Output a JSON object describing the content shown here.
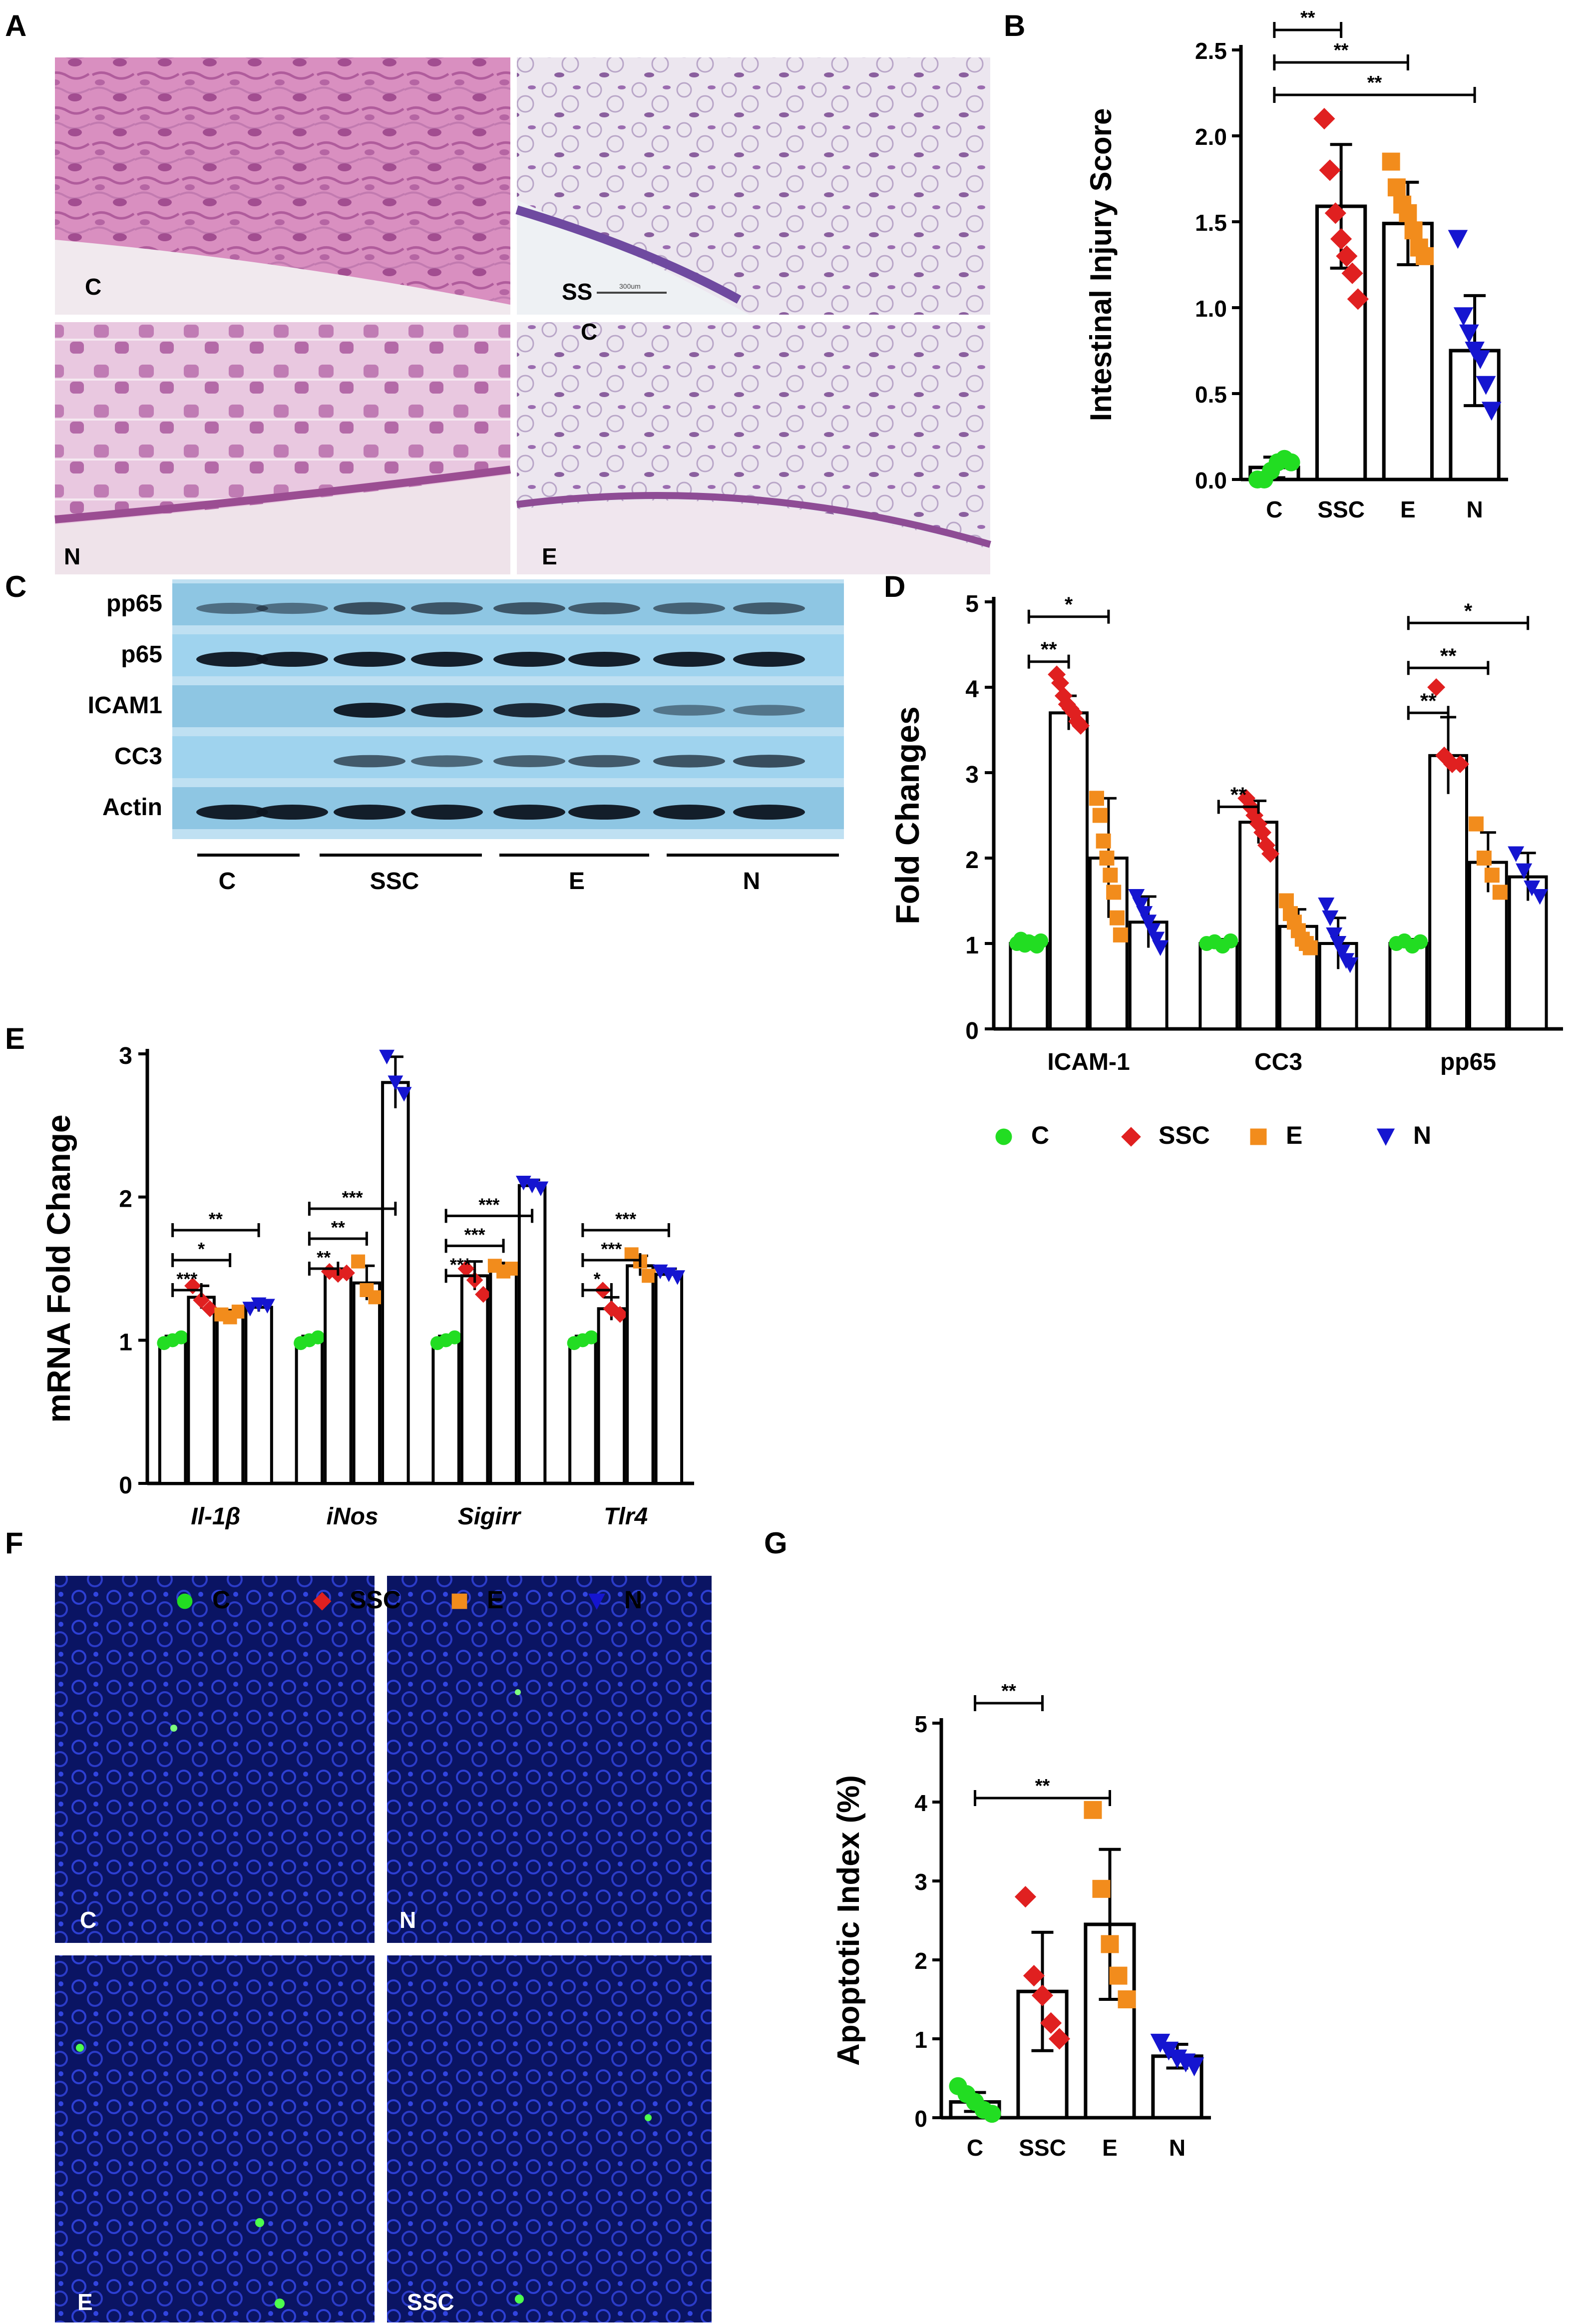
{
  "panel_labels": {
    "A": "A",
    "B": "B",
    "C": "C",
    "D": "D",
    "E": "E",
    "F": "F",
    "G": "G"
  },
  "colors": {
    "C": "#22dd22",
    "SSC": "#e02020",
    "E": "#f28c1c",
    "N": "#1515d0"
  },
  "histology": {
    "labels": [
      "C",
      "SS",
      "C",
      "N",
      "E"
    ],
    "scale_bar": "300um"
  },
  "western": {
    "rows": [
      "pp65",
      "p65",
      "ICAM1",
      "CC3",
      "Actin"
    ],
    "groups": [
      "C",
      "SSC",
      "E",
      "N"
    ]
  },
  "fluorescence": {
    "labels": [
      "C",
      "N",
      "E",
      "SSC"
    ]
  },
  "chart_data": [
    {
      "panel": "B",
      "type": "bar",
      "ylabel": "Intestinal Injury Score",
      "categories": [
        "C",
        "SSC",
        "E",
        "N"
      ],
      "ylim": [
        0,
        2.5
      ],
      "yticks": [
        "0.0",
        "0.5",
        "1.0",
        "1.5",
        "2.0",
        "2.5"
      ],
      "means": [
        0.07,
        1.59,
        1.49,
        0.75
      ],
      "sd": [
        0.06,
        0.36,
        0.24,
        0.32
      ],
      "points": [
        [
          0,
          0,
          0.05,
          0.1,
          0.12,
          0.1
        ],
        [
          2.1,
          1.8,
          1.55,
          1.4,
          1.3,
          1.2,
          1.05
        ],
        [
          1.85,
          1.7,
          1.6,
          1.55,
          1.45,
          1.35,
          1.3
        ],
        [
          1.4,
          0.95,
          0.85,
          0.75,
          0.7,
          0.55,
          0.4
        ]
      ],
      "significance": [
        {
          "from": 0,
          "to": 1,
          "label": "**"
        },
        {
          "from": 0,
          "to": 2,
          "label": "**"
        },
        {
          "from": 0,
          "to": 3,
          "label": "**"
        }
      ]
    },
    {
      "panel": "D",
      "type": "bar",
      "ylabel": "Fold Changes",
      "categories": [
        "ICAM-1",
        "CC3",
        "pp65"
      ],
      "series_names": [
        "C",
        "SSC",
        "E",
        "N"
      ],
      "ylim": [
        0,
        5
      ],
      "yticks": [
        "0",
        "1",
        "2",
        "3",
        "4",
        "5"
      ],
      "means": [
        [
          1.0,
          3.7,
          2.0,
          1.25
        ],
        [
          1.0,
          2.42,
          1.2,
          1.0
        ],
        [
          1.0,
          3.2,
          1.95,
          1.78
        ]
      ],
      "sd": [
        [
          0.05,
          0.2,
          0.7,
          0.3
        ],
        [
          0.05,
          0.25,
          0.2,
          0.3
        ],
        [
          0.05,
          0.45,
          0.35,
          0.28
        ]
      ],
      "points": [
        [
          [
            1.0,
            1.05,
            0.98,
            1.02,
            1.0,
            0.97,
            1.03
          ],
          [
            4.15,
            4.05,
            3.9,
            3.8,
            3.75,
            3.7,
            3.6,
            3.55
          ],
          [
            2.7,
            2.5,
            2.2,
            2.0,
            1.8,
            1.6,
            1.3,
            1.1
          ],
          [
            1.55,
            1.45,
            1.35,
            1.25,
            1.15,
            1.05,
            0.95
          ]
        ],
        [
          [
            1.0,
            1.02,
            0.97,
            1.03
          ],
          [
            2.7,
            2.6,
            2.5,
            2.4,
            2.3,
            2.15,
            2.05
          ],
          [
            1.5,
            1.35,
            1.25,
            1.15,
            1.05,
            1.0,
            0.95
          ],
          [
            1.45,
            1.3,
            1.1,
            1.0,
            0.9,
            0.8,
            0.75
          ]
        ],
        [
          [
            1.0,
            1.03,
            0.97,
            1.02
          ],
          [
            4.0,
            3.2,
            3.1,
            3.1
          ],
          [
            2.4,
            2.0,
            1.8,
            1.6
          ],
          [
            2.05,
            1.85,
            1.65,
            1.55
          ]
        ]
      ],
      "significance": [
        {
          "group": 0,
          "from": 0,
          "to": 1,
          "label": "**"
        },
        {
          "group": 0,
          "from": 0,
          "to": 2,
          "label": "*"
        },
        {
          "group": 1,
          "from": 0,
          "to": 1,
          "label": "**"
        },
        {
          "group": 2,
          "from": 0,
          "to": 1,
          "label": "**"
        },
        {
          "group": 2,
          "from": 0,
          "to": 2,
          "label": "**"
        },
        {
          "group": 2,
          "from": 0,
          "to": 3,
          "label": "*"
        }
      ],
      "legend": [
        "C",
        "SSC",
        "E",
        "N"
      ]
    },
    {
      "panel": "E",
      "type": "bar",
      "ylabel": "mRNA Fold Change",
      "categories": [
        "Il-1β",
        "iNos",
        "Sigirr",
        "Tlr4"
      ],
      "series_names": [
        "C",
        "SSC",
        "E",
        "N"
      ],
      "ylim": [
        0,
        3
      ],
      "yticks": [
        "0",
        "1",
        "2",
        "3"
      ],
      "means": [
        [
          1.0,
          1.3,
          1.18,
          1.23
        ],
        [
          1.0,
          1.47,
          1.4,
          2.8
        ],
        [
          1.0,
          1.45,
          1.5,
          2.08
        ],
        [
          1.0,
          1.22,
          1.52,
          1.46
        ]
      ],
      "sd": [
        [
          0.03,
          0.08,
          0.03,
          0.03
        ],
        [
          0.03,
          0.03,
          0.12,
          0.18
        ],
        [
          0.03,
          0.1,
          0.04,
          0.04
        ],
        [
          0.03,
          0.08,
          0.07,
          0.04
        ]
      ],
      "points": [
        [
          [
            0.98,
            1.0,
            1.02
          ],
          [
            1.38,
            1.28,
            1.22
          ],
          [
            1.18,
            1.16,
            1.2
          ],
          [
            1.22,
            1.25,
            1.24
          ]
        ],
        [
          [
            0.98,
            1.0,
            1.02
          ],
          [
            1.48,
            1.46,
            1.47
          ],
          [
            1.55,
            1.35,
            1.3
          ],
          [
            2.98,
            2.8,
            2.72
          ]
        ],
        [
          [
            0.98,
            1.0,
            1.02
          ],
          [
            1.5,
            1.42,
            1.32
          ],
          [
            1.52,
            1.48,
            1.5
          ],
          [
            2.1,
            2.08,
            2.06
          ]
        ],
        [
          [
            0.98,
            1.0,
            1.02
          ],
          [
            1.35,
            1.22,
            1.18
          ],
          [
            1.6,
            1.55,
            1.45
          ],
          [
            1.48,
            1.46,
            1.44
          ]
        ]
      ],
      "significance": [
        {
          "group": 0,
          "from": 0,
          "to": 1,
          "label": "***"
        },
        {
          "group": 0,
          "from": 0,
          "to": 2,
          "label": "*"
        },
        {
          "group": 0,
          "from": 0,
          "to": 3,
          "label": "**"
        },
        {
          "group": 1,
          "from": 0,
          "to": 1,
          "label": "**"
        },
        {
          "group": 1,
          "from": 0,
          "to": 2,
          "label": "**"
        },
        {
          "group": 1,
          "from": 0,
          "to": 3,
          "label": "***"
        },
        {
          "group": 2,
          "from": 0,
          "to": 1,
          "label": "***"
        },
        {
          "group": 2,
          "from": 0,
          "to": 2,
          "label": "***"
        },
        {
          "group": 2,
          "from": 0,
          "to": 3,
          "label": "***"
        },
        {
          "group": 3,
          "from": 0,
          "to": 1,
          "label": "*"
        },
        {
          "group": 3,
          "from": 0,
          "to": 2,
          "label": "***"
        },
        {
          "group": 3,
          "from": 0,
          "to": 3,
          "label": "***"
        }
      ],
      "legend": [
        "C",
        "SSC",
        "E",
        "N"
      ]
    },
    {
      "panel": "G",
      "type": "bar",
      "ylabel": "Apoptotic Index (%)",
      "categories": [
        "C",
        "SSC",
        "E",
        "N"
      ],
      "ylim": [
        0,
        5
      ],
      "yticks": [
        "0",
        "1",
        "2",
        "3",
        "4",
        "5"
      ],
      "means": [
        0.2,
        1.6,
        2.45,
        0.78
      ],
      "sd": [
        0.12,
        0.75,
        0.95,
        0.15
      ],
      "points": [
        [
          0.4,
          0.3,
          0.2,
          0.1,
          0.05
        ],
        [
          2.8,
          1.8,
          1.55,
          1.2,
          1.0
        ],
        [
          3.9,
          2.9,
          2.2,
          1.8,
          1.5
        ],
        [
          0.95,
          0.85,
          0.75,
          0.7,
          0.65
        ]
      ],
      "significance": [
        {
          "from": 0,
          "to": 1,
          "label": "**"
        },
        {
          "from": 0,
          "to": 2,
          "label": "**"
        }
      ]
    }
  ]
}
